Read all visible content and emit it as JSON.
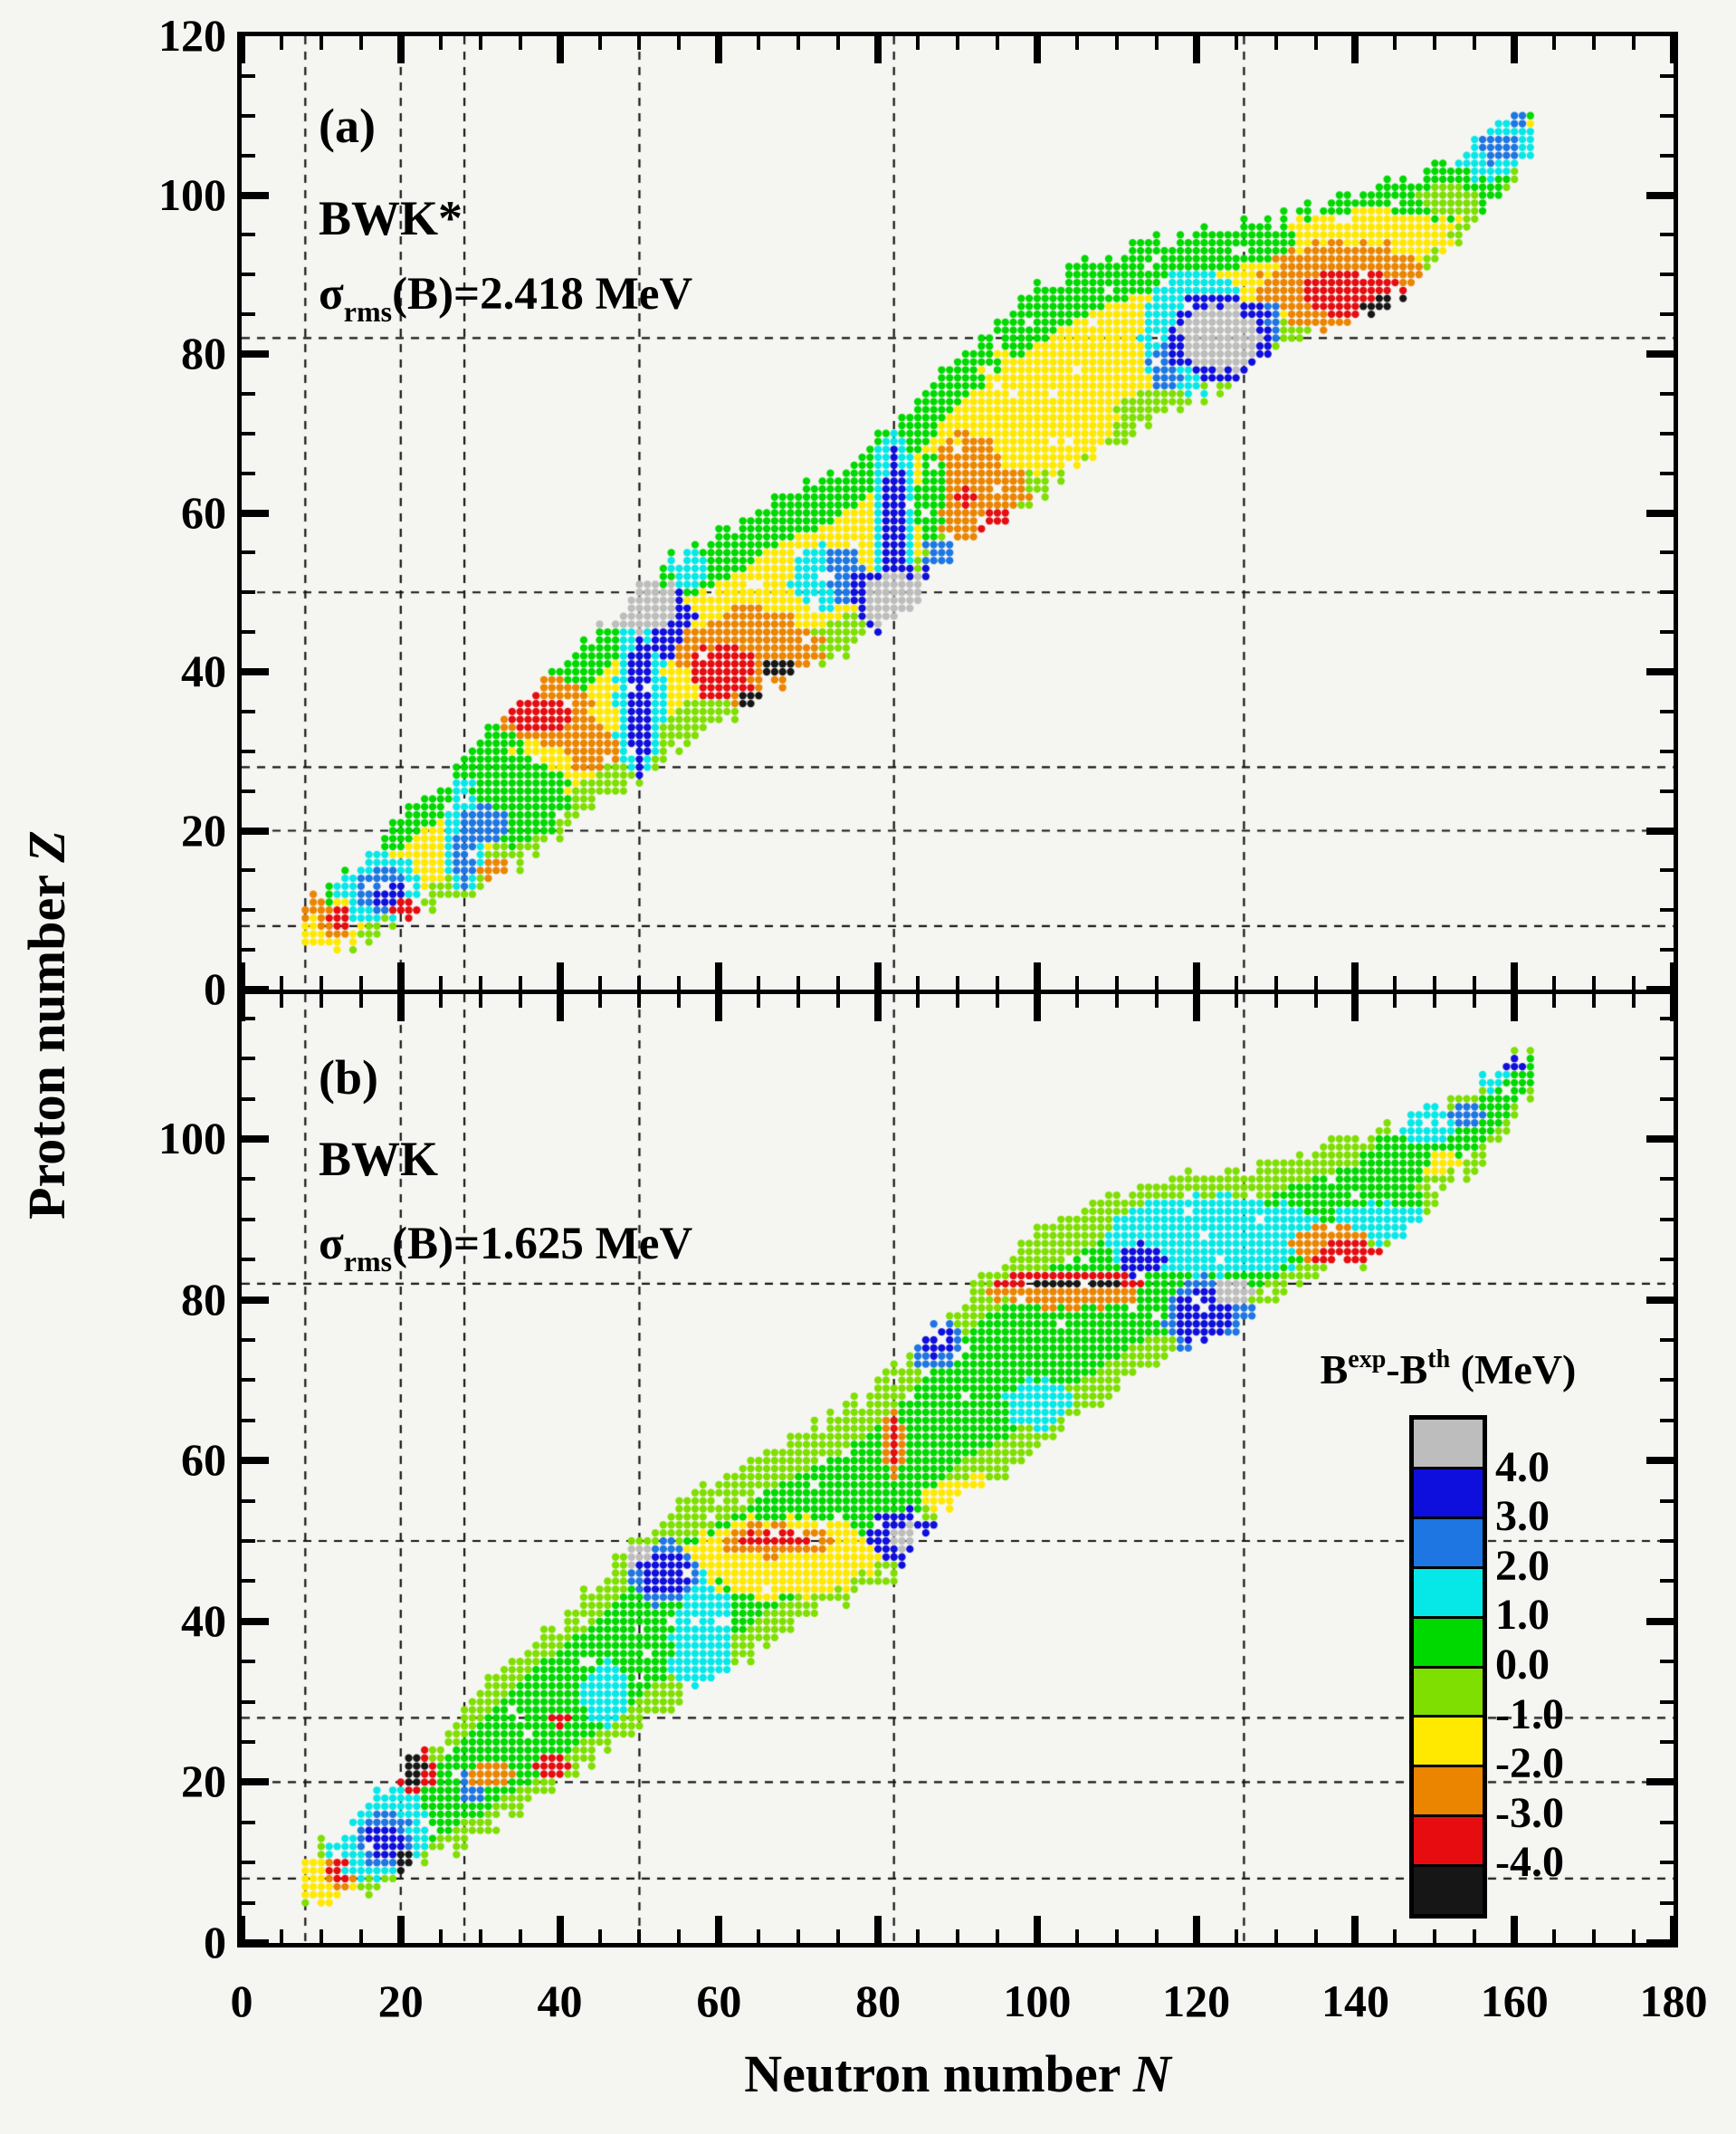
{
  "figure": {
    "background": "#f5f5f2",
    "frame_color": "#000000"
  },
  "labels": {
    "x_axis_title_prefix": "Neutron number ",
    "x_axis_title_symbol": "N",
    "y_axis_title_prefix": "Proton number ",
    "y_axis_title_symbol": "Z",
    "panel_a": {
      "tag": "(a)",
      "model": "BWK*",
      "sigma_symbol": "σ",
      "sigma_sub": "rms",
      "sigma_rest": "(B)=2.418 MeV"
    },
    "panel_b": {
      "tag": "(b)",
      "model": "BWK",
      "sigma_symbol": "σ",
      "sigma_sub": "rms",
      "sigma_rest": "(B)=1.625 MeV"
    },
    "legend": {
      "title_b1": "B",
      "title_sup1": "exp",
      "title_mid": "-B",
      "title_sup2": "th",
      "title_rest": " (MeV)",
      "boundary_labels": [
        "4.0",
        "3.0",
        "2.0",
        "1.0",
        "0.0",
        "-1.0",
        "-2.0",
        "-3.0",
        "-4.0"
      ]
    }
  },
  "axes": {
    "x": {
      "min": 0,
      "max": 180,
      "major_step": 20,
      "minor_step": 5,
      "tick_labels": [
        "0",
        "20",
        "40",
        "60",
        "80",
        "100",
        "120",
        "140",
        "160",
        "180"
      ]
    },
    "y_panel_a": {
      "min": 0,
      "max": 120,
      "major_step": 20,
      "minor_step": 5,
      "tick_labels": [
        "0",
        "20",
        "40",
        "60",
        "80",
        "100",
        "120"
      ]
    },
    "y_panel_b": {
      "min": 0,
      "max": 118,
      "major_step": 20,
      "minor_step": 5,
      "tick_labels": [
        "0",
        "20",
        "40",
        "60",
        "80",
        "100"
      ]
    }
  },
  "chart_data": {
    "type": "scatter",
    "title": "Binding energy residuals B_exp - B_th (MeV) on the nuclear chart",
    "xlabel": "Neutron number N",
    "ylabel": "Proton number Z",
    "x_range": [
      0,
      180
    ],
    "y_range_panel_a": [
      0,
      120
    ],
    "y_range_panel_b": [
      0,
      118
    ],
    "grid": "dashed lines at magic numbers",
    "magic_numbers": {
      "N": [
        8,
        20,
        28,
        50,
        82,
        126
      ],
      "Z": [
        8,
        20,
        28,
        50,
        82
      ]
    },
    "colorbar": {
      "bin_colors_top_to_bottom": [
        "#bdbdbd",
        "#0f0fdd",
        "#1d76e2",
        "#06e8e8",
        "#00d900",
        "#7fdf00",
        "#ffe900",
        "#eb8500",
        "#e60c10",
        "#161616"
      ],
      "boundary_values_top_to_bottom": [
        4.0,
        3.0,
        2.0,
        1.0,
        0.0,
        -1.0,
        -2.0,
        -3.0,
        -4.0
      ],
      "meaning": "B_exp - B_th (MeV); gray > 4.0, black < -4.0",
      "legend_position": "inside lower-right of panel b"
    },
    "band_bounds_N_Zmin_Zmax": [
      [
        8,
        5,
        10
      ],
      [
        10,
        5,
        12
      ],
      [
        12,
        6,
        13
      ],
      [
        14,
        6,
        15
      ],
      [
        16,
        7,
        17
      ],
      [
        18,
        8,
        19
      ],
      [
        20,
        9,
        21
      ],
      [
        22,
        10,
        23
      ],
      [
        24,
        11,
        24
      ],
      [
        26,
        12,
        26
      ],
      [
        28,
        13,
        29
      ],
      [
        30,
        13,
        31
      ],
      [
        32,
        15,
        33
      ],
      [
        34,
        16,
        35
      ],
      [
        36,
        17,
        37
      ],
      [
        38,
        19,
        39
      ],
      [
        40,
        20,
        40
      ],
      [
        42,
        22,
        42
      ],
      [
        44,
        23,
        44
      ],
      [
        46,
        25,
        46
      ],
      [
        48,
        26,
        48
      ],
      [
        50,
        27,
        50
      ],
      [
        52,
        29,
        52
      ],
      [
        54,
        30,
        54
      ],
      [
        56,
        32,
        55
      ],
      [
        58,
        33,
        56
      ],
      [
        60,
        34,
        57
      ],
      [
        62,
        35,
        58
      ],
      [
        64,
        36,
        59
      ],
      [
        66,
        38,
        61
      ],
      [
        68,
        39,
        62
      ],
      [
        70,
        40,
        63
      ],
      [
        73,
        42,
        64
      ],
      [
        76,
        43,
        66
      ],
      [
        79,
        45,
        68
      ],
      [
        82,
        46,
        71
      ],
      [
        85,
        50,
        74
      ],
      [
        88,
        54,
        77
      ],
      [
        91,
        57,
        80
      ],
      [
        94,
        58,
        83
      ],
      [
        97,
        60,
        86
      ],
      [
        100,
        62,
        88
      ],
      [
        104,
        66,
        90
      ],
      [
        108,
        68,
        92
      ],
      [
        112,
        71,
        93
      ],
      [
        116,
        73,
        94
      ],
      [
        120,
        75,
        95
      ],
      [
        123,
        76,
        95
      ],
      [
        126,
        78,
        96
      ],
      [
        129,
        80,
        96
      ],
      [
        132,
        82,
        97
      ],
      [
        135,
        83,
        98
      ],
      [
        138,
        85,
        99
      ],
      [
        141,
        85,
        100
      ],
      [
        144,
        87,
        101
      ],
      [
        147,
        89,
        102
      ],
      [
        150,
        92,
        103
      ],
      [
        153,
        95,
        105
      ],
      [
        156,
        98,
        107
      ],
      [
        159,
        102,
        109
      ],
      [
        162,
        106,
        111
      ]
    ],
    "panels": [
      {
        "key": "a",
        "model": "BWK*",
        "sigma_rms_B_MeV": 2.418,
        "base_rule": {
          "upper_green_frac": 0.74,
          "lower_yellowgreen_frac": 0.18,
          "core_color": 6,
          "upper_color": 4,
          "lower_color": 5
        },
        "features_n_z_rn_rz_color": [
          [
            34,
            24,
            7,
            6,
            4
          ],
          [
            11,
            7.5,
            4,
            3.5,
            6
          ],
          [
            8,
            11,
            2.5,
            2,
            7
          ],
          [
            12,
            8.5,
            2.5,
            2,
            7
          ],
          [
            12.5,
            9,
            1.6,
            1.2,
            8
          ],
          [
            17,
            13,
            5,
            4.5,
            3
          ],
          [
            17.5,
            12.5,
            3,
            2.8,
            2
          ],
          [
            18.5,
            12,
            2,
            2,
            1
          ],
          [
            21,
            10,
            2.5,
            1.5,
            8
          ],
          [
            28,
            19,
            2.5,
            7,
            3
          ],
          [
            31,
            21,
            2.5,
            2.5,
            2
          ],
          [
            28,
            17,
            1.2,
            5,
            2
          ],
          [
            32,
            15,
            2,
            1.5,
            7
          ],
          [
            38,
            35,
            6,
            4.5,
            7
          ],
          [
            37.5,
            34.5,
            3.5,
            2.5,
            8
          ],
          [
            44,
            29.5,
            2,
            1.5,
            8
          ],
          [
            73,
            52,
            4,
            4,
            3
          ],
          [
            50,
            37,
            3.2,
            10,
            3
          ],
          [
            56,
            53,
            2.5,
            2.5,
            3
          ],
          [
            50,
            36,
            1.4,
            9,
            1
          ],
          [
            54,
            46,
            3,
            4.5,
            1
          ],
          [
            49,
            48.5,
            6.5,
            3.5,
            0
          ],
          [
            64,
            42,
            9,
            6,
            7
          ],
          [
            44,
            30.5,
            3.5,
            3,
            7
          ],
          [
            60.5,
            40,
            4,
            3.5,
            8
          ],
          [
            67.5,
            40.5,
            2,
            1.2,
            9
          ],
          [
            64,
            36.5,
            2.2,
            1.2,
            9
          ],
          [
            92,
            63,
            6.5,
            7,
            7
          ],
          [
            86.5,
            62,
            1.8,
            6,
            4
          ],
          [
            95.5,
            58.5,
            3,
            2,
            8
          ],
          [
            91,
            62,
            1,
            1,
            8
          ],
          [
            101,
            73,
            9,
            8,
            6
          ],
          [
            82,
            58,
            2.8,
            13,
            3
          ],
          [
            76,
            52,
            2.5,
            4,
            2
          ],
          [
            88,
            53,
            2.5,
            4,
            2
          ],
          [
            82,
            58,
            1.3,
            11,
            1
          ],
          [
            78,
            50.5,
            1.5,
            2.5,
            1
          ],
          [
            86,
            50.5,
            1.5,
            2.5,
            1
          ],
          [
            82.5,
            48.5,
            5,
            5.2,
            1
          ],
          [
            82.5,
            48.5,
            3.8,
            4.2,
            0
          ],
          [
            120,
            83,
            7,
            7.5,
            3
          ],
          [
            116,
            78,
            2,
            3,
            2
          ],
          [
            129,
            84,
            2,
            2.5,
            2
          ],
          [
            123,
            82,
            6.6,
            5.6,
            1
          ],
          [
            123,
            82,
            5,
            4.2,
            0
          ],
          [
            142,
            95,
            10,
            3.5,
            6
          ],
          [
            139,
            88.5,
            11,
            5.5,
            7
          ],
          [
            140,
            87.5,
            7,
            3,
            8
          ],
          [
            144,
            86,
            4,
            1.3,
            9
          ],
          [
            150,
            101,
            9,
            4,
            4
          ],
          [
            152,
            99.5,
            4,
            2,
            5
          ],
          [
            157,
            107,
            6,
            5,
            3
          ],
          [
            158,
            106,
            2.5,
            2,
            2
          ],
          [
            160.5,
            110,
            1.5,
            1.2,
            2
          ]
        ]
      },
      {
        "key": "b",
        "model": "BWK",
        "sigma_rms_B_MeV": 1.625,
        "base_rule": {
          "upper_green_frac": 0.8,
          "lower_yellowgreen_frac": 0.14,
          "core_color": 4,
          "upper_color": 5,
          "lower_color": 5
        },
        "features_n_z_rn_rz_color": [
          [
            11,
            7.5,
            4,
            3.5,
            6
          ],
          [
            12,
            8.5,
            2,
            1.8,
            7
          ],
          [
            12.5,
            9,
            1.5,
            1.2,
            8
          ],
          [
            17,
            14,
            6.5,
            6,
            3
          ],
          [
            18,
            13,
            3.5,
            3.5,
            2
          ],
          [
            18,
            12.5,
            2.5,
            2.5,
            1
          ],
          [
            21.5,
            21.5,
            3,
            2.8,
            8
          ],
          [
            21.5,
            21.5,
            1.7,
            1.6,
            9
          ],
          [
            20.5,
            10,
            1.2,
            1.5,
            9
          ],
          [
            29,
            19.5,
            2,
            2,
            2
          ],
          [
            31,
            21,
            3,
            1.5,
            7
          ],
          [
            39,
            22,
            2,
            1.5,
            8
          ],
          [
            40,
            28,
            1.5,
            1,
            8
          ],
          [
            46,
            31,
            3,
            4,
            3
          ],
          [
            58,
            37,
            4,
            9,
            3
          ],
          [
            91,
            55,
            5,
            3,
            6
          ],
          [
            68,
            48,
            12,
            5,
            6
          ],
          [
            67,
            50,
            7,
            2,
            7
          ],
          [
            67,
            50.2,
            5,
            1,
            8
          ],
          [
            53,
            46,
            4.5,
            4,
            2
          ],
          [
            53,
            46,
            3.2,
            2.8,
            1
          ],
          [
            49.5,
            48.5,
            1.5,
            1.5,
            0
          ],
          [
            83,
            50.5,
            4.5,
            3.5,
            1
          ],
          [
            83.5,
            50.5,
            2,
            1.5,
            0
          ],
          [
            82,
            62,
            1.5,
            4.5,
            7
          ],
          [
            82,
            62,
            0.9,
            3,
            8
          ],
          [
            100,
            67,
            4,
            3,
            3
          ],
          [
            87,
            75,
            3.5,
            3.5,
            2
          ],
          [
            87.5,
            75,
            2,
            2,
            1
          ],
          [
            104,
            81,
            10,
            2.2,
            7
          ],
          [
            104,
            82.3,
            10,
            1.1,
            8
          ],
          [
            105,
            82,
            5,
            0.8,
            9
          ],
          [
            122,
            88,
            14,
            5,
            3
          ],
          [
            113,
            85,
            3,
            2,
            1
          ],
          [
            122,
            78,
            6,
            5,
            2
          ],
          [
            121,
            78,
            4,
            3.5,
            1
          ],
          [
            125,
            81,
            2.5,
            1.8,
            0
          ],
          [
            143,
            89.5,
            6,
            2.5,
            3
          ],
          [
            137,
            87,
            5,
            2.5,
            7
          ],
          [
            139,
            85.5,
            4,
            1.8,
            8
          ],
          [
            138.5,
            83.5,
            1.8,
            1.2,
            9
          ],
          [
            146,
            97,
            5,
            4,
            4
          ],
          [
            151,
            96,
            2.5,
            2.5,
            6
          ],
          [
            152,
            94,
            4,
            2,
            5
          ],
          [
            149,
            102,
            4,
            2.5,
            3
          ],
          [
            154,
            103,
            2,
            1.5,
            2
          ],
          [
            156.5,
            107.5,
            2.5,
            1.5,
            3
          ],
          [
            159,
            109.5,
            2.5,
            1.2,
            1
          ]
        ]
      }
    ]
  }
}
